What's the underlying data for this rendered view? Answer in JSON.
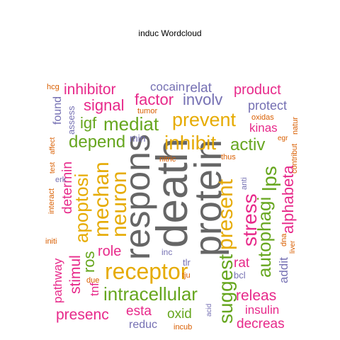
{
  "title": "induc  Wordcloud",
  "palette": {
    "pink": "#E7298A",
    "green": "#66A61E",
    "gold": "#E6AB02",
    "gray": "#666666",
    "purple": "#7570B3",
    "orange": "#D95F02"
  },
  "words": [
    {
      "text": "death",
      "color": "gray"
    },
    {
      "text": "protein",
      "color": "gray"
    },
    {
      "text": "respons",
      "color": "gray"
    },
    {
      "text": "receptor",
      "color": "gold"
    },
    {
      "text": "inhibit",
      "color": "gold"
    },
    {
      "text": "prevent",
      "color": "gold"
    },
    {
      "text": "mediat",
      "color": "green"
    },
    {
      "text": "intracellular",
      "color": "green"
    },
    {
      "text": "present",
      "color": "gold"
    },
    {
      "text": "suggest",
      "color": "green"
    },
    {
      "text": "stress",
      "color": "pink"
    },
    {
      "text": "autophagi",
      "color": "green"
    },
    {
      "text": "alphabeta",
      "color": "pink"
    },
    {
      "text": "lps",
      "color": "green"
    },
    {
      "text": "neuron",
      "color": "gold"
    },
    {
      "text": "mechan",
      "color": "gold"
    },
    {
      "text": "apoptosi",
      "color": "gold"
    },
    {
      "text": "depend",
      "color": "green"
    },
    {
      "text": "signal",
      "color": "pink"
    },
    {
      "text": "igf",
      "color": "green"
    },
    {
      "text": "factor",
      "color": "pink"
    },
    {
      "text": "involv",
      "color": "purple"
    },
    {
      "text": "product",
      "color": "pink"
    },
    {
      "text": "protect",
      "color": "purple"
    },
    {
      "text": "activ",
      "color": "green"
    },
    {
      "text": "kinas",
      "color": "pink"
    },
    {
      "text": "inhibitor",
      "color": "pink"
    },
    {
      "text": "cocain",
      "color": "purple"
    },
    {
      "text": "relat",
      "color": "purple"
    },
    {
      "text": "role",
      "color": "pink"
    },
    {
      "text": "ros",
      "color": "green"
    },
    {
      "text": "stimul",
      "color": "pink"
    },
    {
      "text": "pathway",
      "color": "pink"
    },
    {
      "text": "tnf",
      "color": "pink"
    },
    {
      "text": "presenc",
      "color": "pink"
    },
    {
      "text": "esta",
      "color": "pink"
    },
    {
      "text": "oxid",
      "color": "green"
    },
    {
      "text": "releas",
      "color": "pink"
    },
    {
      "text": "insulin",
      "color": "pink"
    },
    {
      "text": "decreas",
      "color": "pink"
    },
    {
      "text": "reduc",
      "color": "purple"
    },
    {
      "text": "rat",
      "color": "pink"
    },
    {
      "text": "addit",
      "color": "purple"
    },
    {
      "text": "determin",
      "color": "pink"
    },
    {
      "text": "found",
      "color": "purple"
    },
    {
      "text": "assess",
      "color": "purple"
    },
    {
      "text": "min",
      "color": "purple"
    },
    {
      "text": "tumor",
      "color": "orange"
    },
    {
      "text": "oxidas",
      "color": "orange"
    },
    {
      "text": "natur",
      "color": "orange"
    },
    {
      "text": "egr",
      "color": "orange"
    },
    {
      "text": "contribut",
      "color": "orange"
    },
    {
      "text": "thus",
      "color": "orange"
    },
    {
      "text": "anti",
      "color": "purple"
    },
    {
      "text": "nitric",
      "color": "orange"
    },
    {
      "text": "hcg",
      "color": "orange"
    },
    {
      "text": "affect",
      "color": "orange"
    },
    {
      "text": "test",
      "color": "orange"
    },
    {
      "text": "erk",
      "color": "purple"
    },
    {
      "text": "interact",
      "color": "orange"
    },
    {
      "text": "initi",
      "color": "orange"
    },
    {
      "text": "inc",
      "color": "purple"
    },
    {
      "text": "tlr",
      "color": "purple"
    },
    {
      "text": "bcl",
      "color": "purple"
    },
    {
      "text": "tju",
      "color": "orange"
    },
    {
      "text": "due",
      "color": "orange"
    },
    {
      "text": "acid",
      "color": "purple"
    },
    {
      "text": "incub",
      "color": "orange"
    },
    {
      "text": "dna",
      "color": "orange"
    },
    {
      "text": "liver",
      "color": "orange"
    }
  ]
}
